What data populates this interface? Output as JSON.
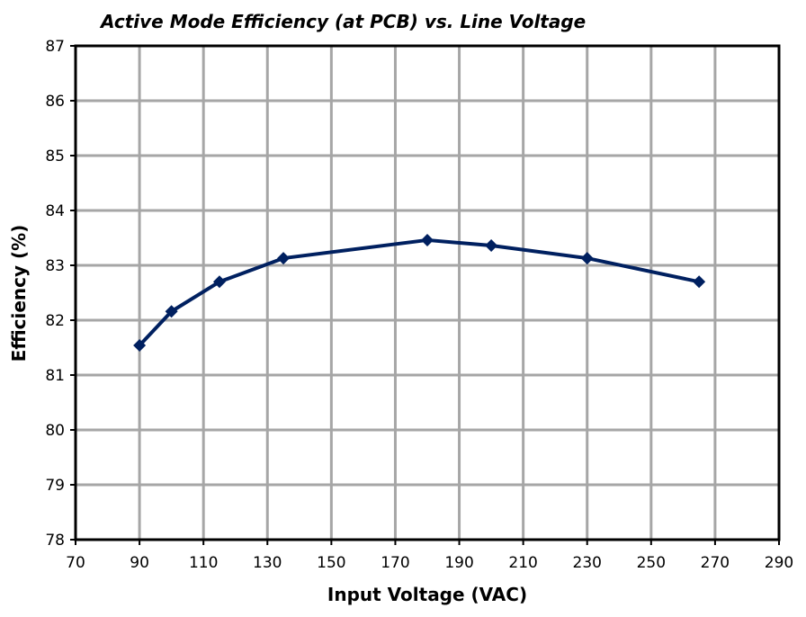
{
  "chart_data": {
    "type": "line",
    "title": "Active Mode Efficiency (at PCB) vs. Line Voltage",
    "xlabel": "Input Voltage (VAC)",
    "ylabel": "Efficiency (%)",
    "xlim": [
      70,
      290
    ],
    "ylim": [
      78,
      87
    ],
    "xticks": [
      70,
      90,
      110,
      130,
      150,
      170,
      190,
      210,
      230,
      250,
      270,
      290
    ],
    "yticks": [
      78,
      79,
      80,
      81,
      82,
      83,
      84,
      85,
      86,
      87
    ],
    "grid": true,
    "series": [
      {
        "name": "Efficiency",
        "color": "#002060",
        "marker": "diamond",
        "x": [
          90,
          100,
          115,
          135,
          180,
          200,
          230,
          265
        ],
        "y": [
          81.54,
          82.16,
          82.7,
          83.13,
          83.46,
          83.36,
          83.13,
          82.7
        ]
      }
    ]
  }
}
